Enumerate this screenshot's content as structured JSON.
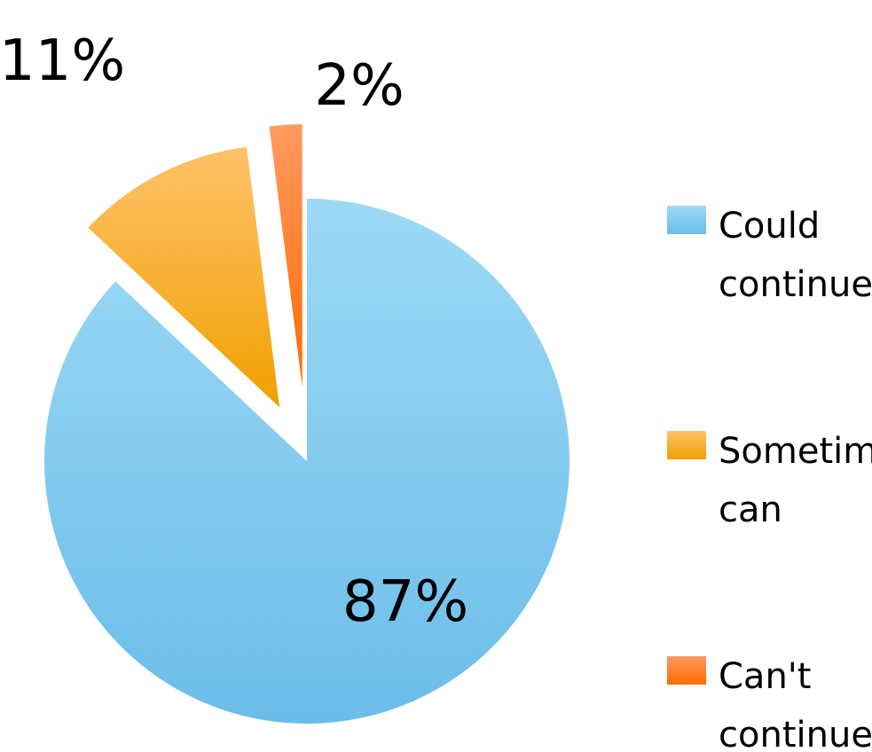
{
  "chart_data": {
    "type": "pie",
    "slices": [
      {
        "label": "Could continue",
        "value": 87,
        "data_label": "87%",
        "color": "#7ecbf3",
        "color_light": "#9dd9f6",
        "color_dark": "#6bbde9"
      },
      {
        "label": "Sometimes can",
        "value": 11,
        "data_label": "11%",
        "color": "#f7b030",
        "color_light": "#ffc26a",
        "color_dark": "#f0a000"
      },
      {
        "label": "Can't continue",
        "value": 2,
        "data_label": "2%",
        "color": "#ff7a20",
        "color_light": "#ff9a60",
        "color_dark": "#ff6a00"
      }
    ],
    "legend": {
      "position": "right",
      "entries": [
        {
          "line1": "Could",
          "line2": "continue"
        },
        {
          "line1": "Sometimes",
          "line2": "can"
        },
        {
          "line1": "Can't",
          "line2": "continue"
        }
      ]
    },
    "title": "",
    "exploded": true
  }
}
